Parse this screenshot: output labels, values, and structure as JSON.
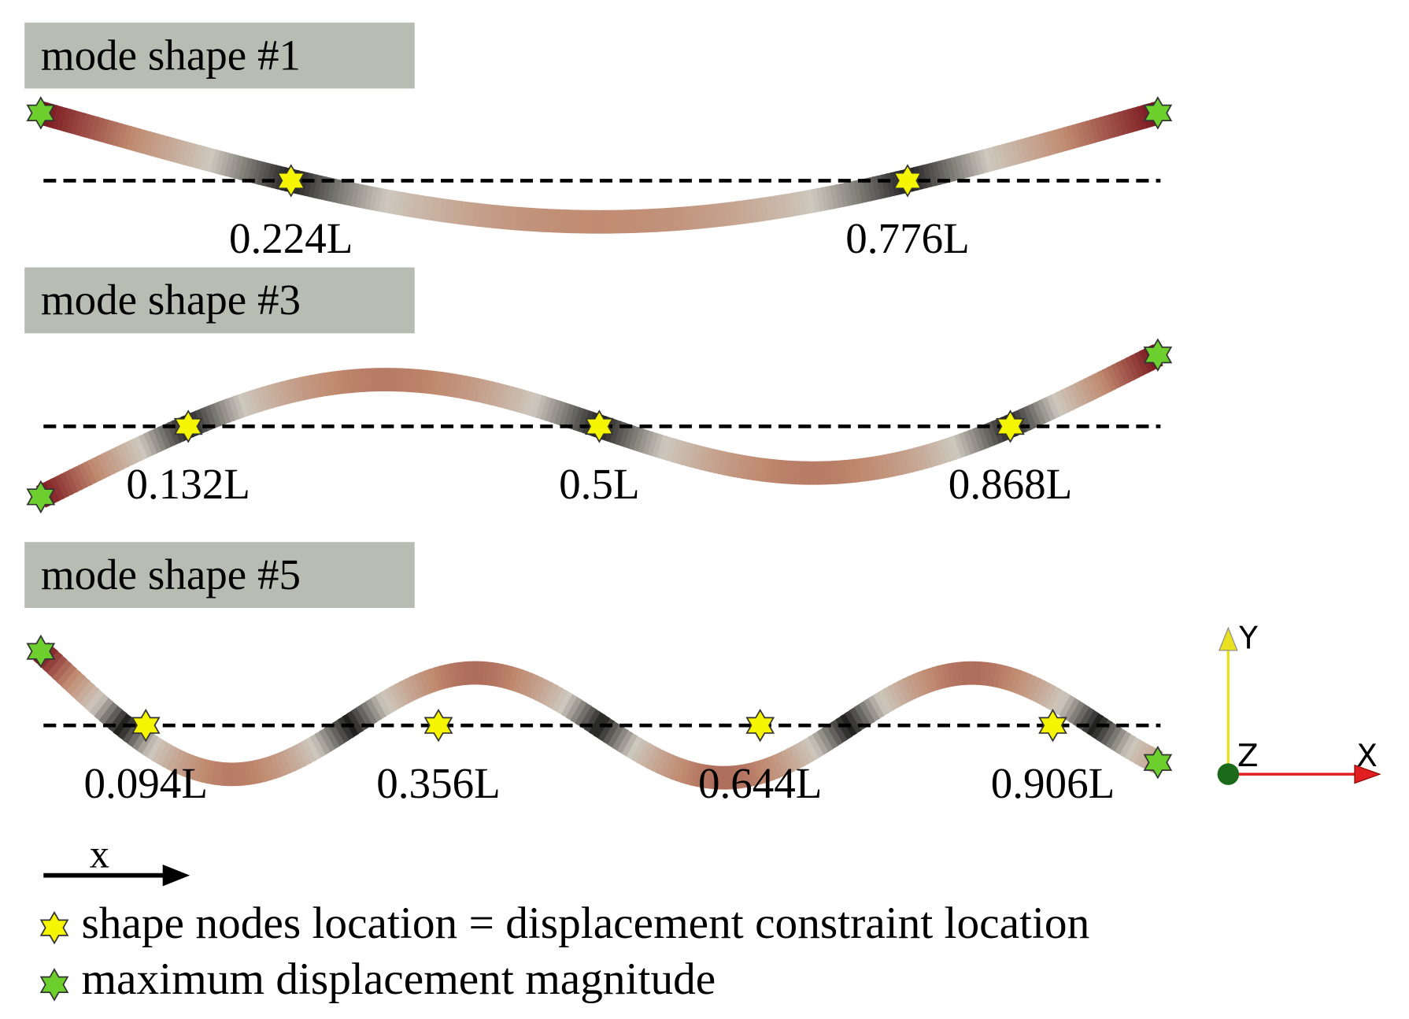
{
  "panels": [
    {
      "title": "mode shape #1",
      "nodes": [
        "0.224L",
        "0.776L"
      ]
    },
    {
      "title": "mode shape #3",
      "nodes": [
        "0.132L",
        "0.5L",
        "0.868L"
      ]
    },
    {
      "title": "mode shape #5",
      "nodes": [
        "0.094L",
        "0.356L",
        "0.644L",
        "0.906L"
      ]
    }
  ],
  "axis_arrow_label": "x",
  "triad": {
    "y": "Y",
    "z": "Z",
    "x": "X"
  },
  "legend": [
    {
      "label": "shape nodes location = displacement constraint location"
    },
    {
      "label": "maximum displacement magnitude"
    }
  ]
}
